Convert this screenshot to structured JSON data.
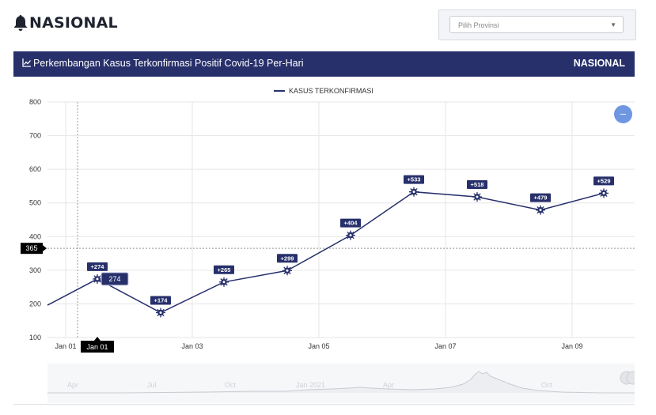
{
  "brand": {
    "title": "NASIONAL",
    "icon": "bell-icon"
  },
  "province_select": {
    "placeholder": "Pilih Provinsi",
    "icon": "chevron-down-icon"
  },
  "panel": {
    "title": "Perkembangan Kasus Terkonfirmasi Positif Covid-19 Per-Hari",
    "region": "NASIONAL",
    "icon": "line-chart-icon"
  },
  "reset_button": {
    "label": "–"
  },
  "navigator": {
    "labels": [
      "Apr",
      "Jul",
      "Oct",
      "Jan 2021",
      "Apr",
      "Oct"
    ]
  },
  "colors": {
    "header_bar": "#27306b",
    "series": "#27306b",
    "reset": "#6f96e0",
    "crosshair_label": "#000000"
  },
  "chart_data": {
    "type": "line",
    "legend": "KASUS TERKONFIRMASI",
    "legend_position": "top-center",
    "x": [
      "2021-01-01",
      "2021-01-02",
      "2021-01-03",
      "2021-01-04",
      "2021-01-05",
      "2021-01-06",
      "2021-01-07",
      "2021-01-08",
      "2021-01-09"
    ],
    "x_ticks": [
      "Jan 01",
      "Jan 03",
      "Jan 05",
      "Jan 07",
      "Jan 09"
    ],
    "series": [
      {
        "name": "KASUS TERKONFIRMASI",
        "values": [
          274,
          174,
          265,
          299,
          404,
          533,
          518,
          479,
          529
        ]
      }
    ],
    "data_labels": [
      "+274",
      "+174",
      "+265",
      "+299",
      "+404",
      "+533",
      "+518",
      "+479",
      "+529"
    ],
    "y_ticks": [
      100,
      200,
      300,
      400,
      500,
      600,
      700,
      800
    ],
    "ylim": [
      100,
      800
    ],
    "grid": true,
    "crosshair": {
      "y_label": "365",
      "x_label": "Jan 01",
      "tooltip": "274"
    }
  }
}
